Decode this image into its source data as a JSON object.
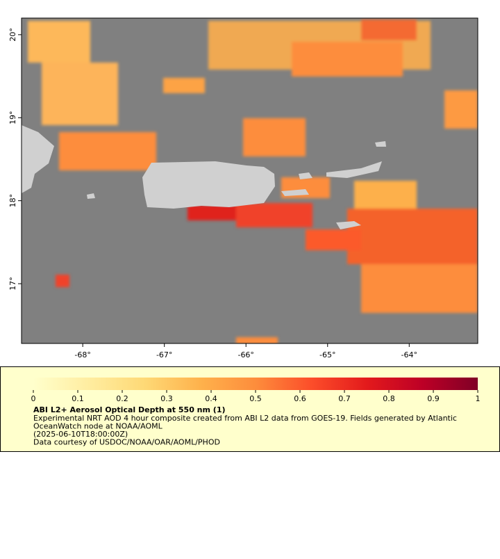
{
  "map": {
    "xlim": [
      -68.75,
      -63.16
    ],
    "ylim": [
      16.28,
      20.2
    ],
    "xticks": [
      {
        "value": -68,
        "label": "-68°"
      },
      {
        "value": -67,
        "label": "-67°"
      },
      {
        "value": -66,
        "label": "-66°"
      },
      {
        "value": -65,
        "label": "-65°"
      },
      {
        "value": -64,
        "label": "-64°"
      }
    ],
    "yticks": [
      {
        "value": 17,
        "label": "17°"
      },
      {
        "value": 18,
        "label": "18°"
      },
      {
        "value": 19,
        "label": "19°"
      },
      {
        "value": 20,
        "label": "20°"
      }
    ]
  },
  "legend": {
    "range": [
      0,
      1
    ],
    "ticks": [
      0,
      0.1,
      0.2,
      0.3,
      0.4,
      0.5,
      0.6,
      0.7,
      0.8,
      0.9,
      1
    ],
    "colors": [
      "#ffffcc",
      "#ffeda0",
      "#fed976",
      "#feb24c",
      "#fd8d3c",
      "#fc4e2a",
      "#e31a1c",
      "#bd0026",
      "#800026"
    ],
    "title": "ABI L2+ Aerosol Optical Depth at 550 nm (1)",
    "lines": [
      "Experimental NRT AOD 4 hour composite created from ABI L2 data from GOES-19. Fields generated by Atlantic",
      "OceanWatch node at NOAA/AOML",
      "(2025-06-10T18:00:00Z)",
      "Data courtesy of USDOC/NOAA/OAR/AOML/PHOD"
    ]
  }
}
